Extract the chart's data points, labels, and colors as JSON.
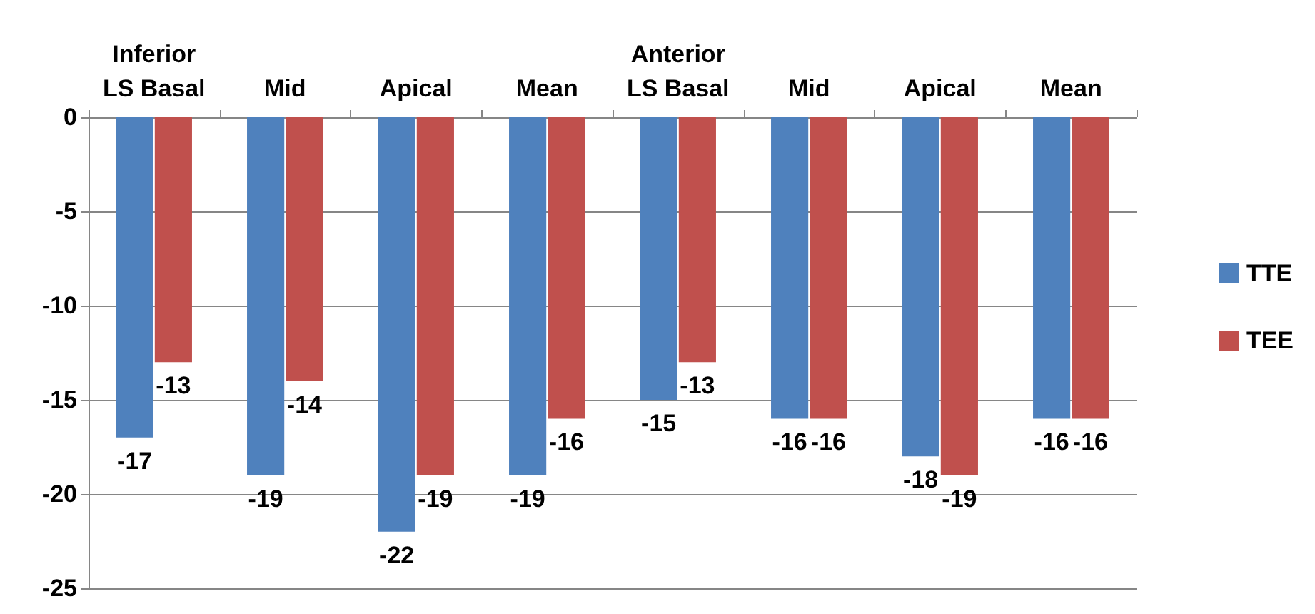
{
  "chart_data": {
    "type": "bar",
    "categories": [
      "Inferior\nLS Basal",
      "Mid",
      "Apical",
      "Mean",
      "Anterior\nLS Basal",
      "Mid",
      "Apical",
      "Mean"
    ],
    "series": [
      {
        "name": "TTE",
        "color": "#4f81bd",
        "values": [
          -17,
          -19,
          -22,
          -19,
          -15,
          -16,
          -18,
          -16
        ]
      },
      {
        "name": "TEE",
        "color": "#c0504d",
        "values": [
          -13,
          -14,
          -19,
          -16,
          -13,
          -16,
          -19,
          -16
        ]
      }
    ],
    "ylim": [
      -25,
      0
    ],
    "yticks": [
      -25,
      -20,
      -15,
      -10,
      -5,
      0
    ],
    "grid": "y",
    "legend": "right",
    "data_labels": true
  }
}
